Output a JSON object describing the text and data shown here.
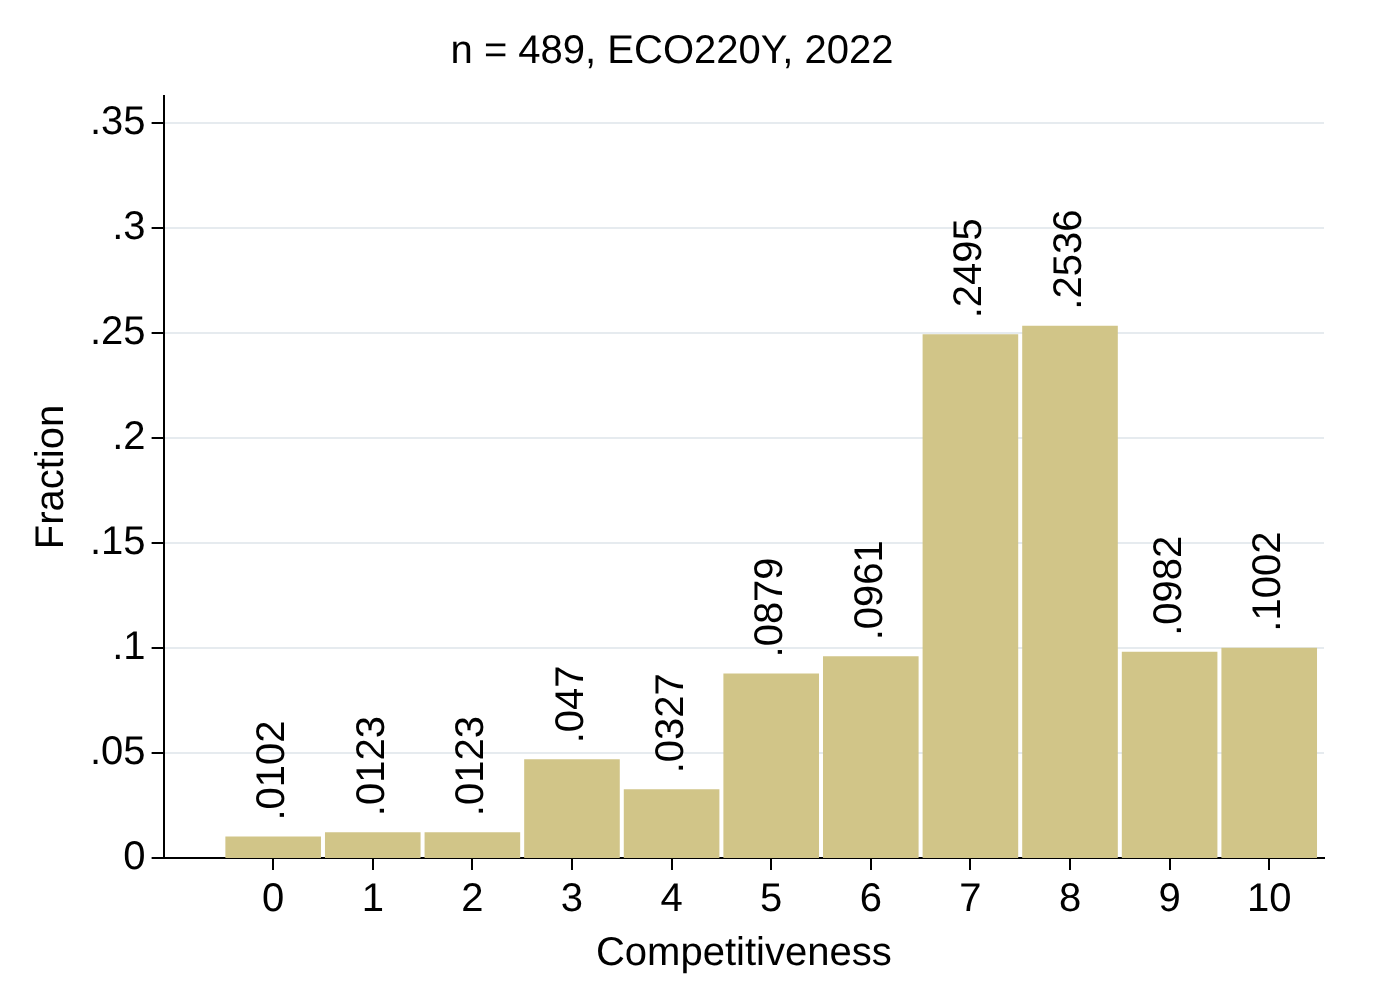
{
  "chart_data": {
    "type": "histogram",
    "title": "n = 489, ECO220Y, 2022",
    "xlabel": "Competitiveness",
    "ylabel": "Fraction",
    "bins": [
      -0.5,
      0.5,
      1.5,
      2.5,
      3.5,
      4.5,
      5.5,
      6.5,
      7.5,
      8.5,
      9.5,
      10.5
    ],
    "values": [
      0.0102,
      0.0123,
      0.0123,
      0.047,
      0.0327,
      0.0879,
      0.0961,
      0.2495,
      0.2536,
      0.0982,
      0.1002
    ],
    "value_labels": [
      ".0102",
      ".0123",
      ".0123",
      ".047",
      ".0327",
      ".0879",
      ".0961",
      ".2495",
      ".2536",
      ".0982",
      ".1002"
    ],
    "color": "#d1c588",
    "xlim": [
      -1.1,
      10.55
    ],
    "xticks": [
      0,
      1,
      2,
      3,
      4,
      5,
      6,
      7,
      8,
      9,
      10
    ],
    "ylim": [
      0,
      0.363
    ],
    "yticks": [
      0,
      {
        "value": 0.05,
        "label": ".05"
      },
      {
        "value": 0.1,
        "label": ".1"
      },
      {
        "value": 0.15,
        "label": ".15"
      },
      {
        "value": 0.2,
        "label": ".2"
      },
      {
        "value": 0.25,
        "label": ".25"
      },
      {
        "value": 0.3,
        "label": ".3"
      },
      {
        "value": 0.35,
        "label": ".35"
      }
    ],
    "grid": "y",
    "legend": false
  }
}
